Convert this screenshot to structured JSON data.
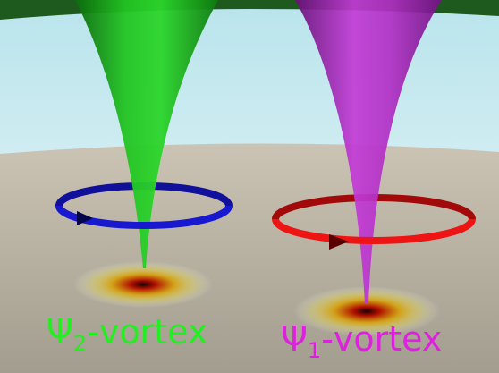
{
  "colors": {
    "sky_top": "#b9e4ec",
    "sky_bottom": "#eef8f9",
    "floor_far": "#c5beae",
    "floor_near": "#a8a294",
    "vortex_2": "#1fb41f",
    "vortex_1": "#b02bc3",
    "ring_2": "#1515c8",
    "ring_1": "#e01010",
    "label_2": "#22ee22",
    "label_1": "#e020e0"
  },
  "labels": {
    "vortex_2": {
      "symbol": "Ψ",
      "sub": "2",
      "suffix": "-vortex"
    },
    "vortex_1": {
      "symbol": "Ψ",
      "sub": "1",
      "suffix": "-vortex"
    }
  }
}
